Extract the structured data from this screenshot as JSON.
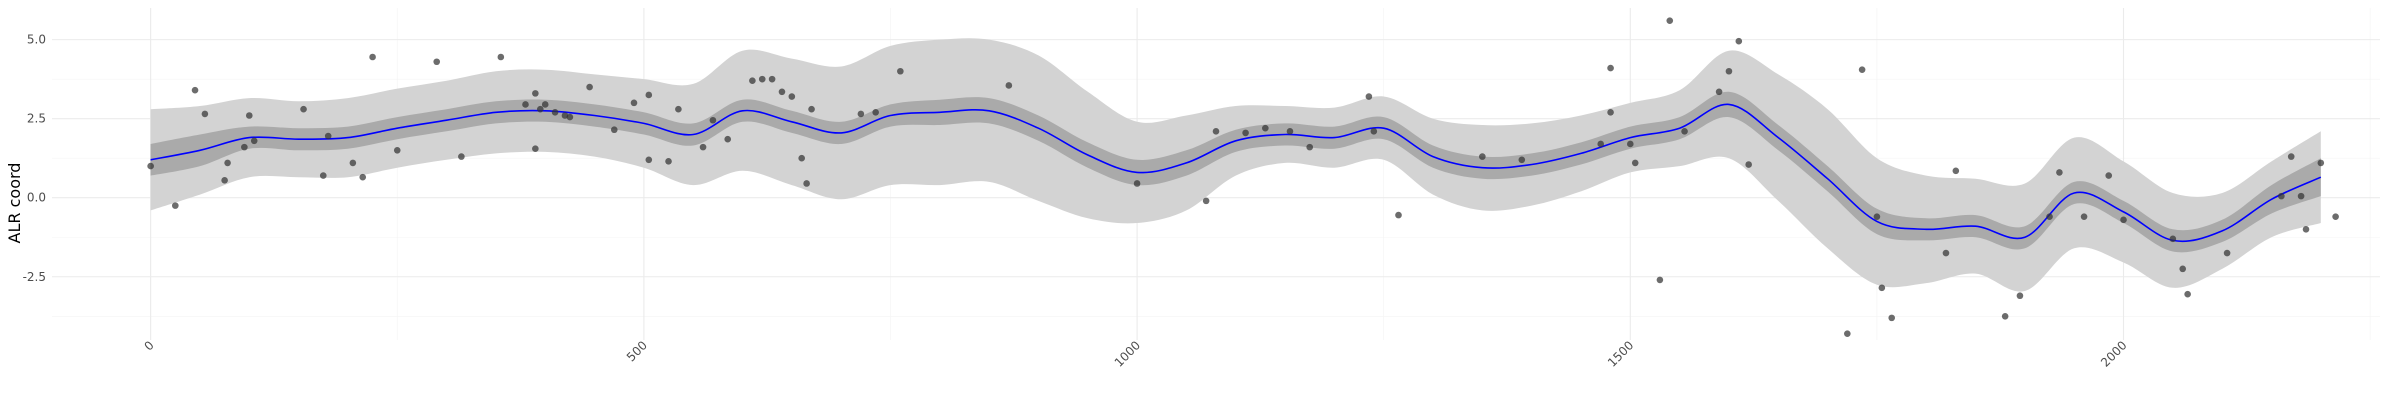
{
  "chart_data": {
    "type": "scatter",
    "title": "",
    "xlabel": "",
    "ylabel": "ALR coord",
    "xlim": [
      -100,
      2260
    ],
    "ylim": [
      -4.5,
      6.0
    ],
    "x_ticks": [
      0,
      500,
      1000,
      1500,
      2000
    ],
    "x_tick_labels": [
      "0",
      "500",
      "1000",
      "1500",
      "2000"
    ],
    "y_ticks": [
      -2.5,
      0.0,
      2.5,
      5.0
    ],
    "y_tick_labels": [
      "-2.5",
      "0.0",
      "2.5",
      "5.0"
    ],
    "grid": true,
    "legend": "none",
    "colors": {
      "fit_line": "#0000ff",
      "inner_band": "#aaaaaa",
      "outer_band": "#d3d3d3",
      "points": "#333333"
    },
    "points": [
      [
        0,
        1.0
      ],
      [
        25,
        -0.25
      ],
      [
        45,
        3.4
      ],
      [
        55,
        2.65
      ],
      [
        75,
        0.55
      ],
      [
        78,
        1.1
      ],
      [
        95,
        1.6
      ],
      [
        105,
        1.8
      ],
      [
        100,
        2.6
      ],
      [
        155,
        2.8
      ],
      [
        175,
        0.7
      ],
      [
        180,
        1.95
      ],
      [
        215,
        0.65
      ],
      [
        205,
        1.1
      ],
      [
        225,
        4.45
      ],
      [
        250,
        1.5
      ],
      [
        290,
        4.3
      ],
      [
        315,
        1.3
      ],
      [
        355,
        4.45
      ],
      [
        380,
        2.95
      ],
      [
        390,
        1.55
      ],
      [
        390,
        3.3
      ],
      [
        395,
        2.8
      ],
      [
        400,
        2.95
      ],
      [
        410,
        2.7
      ],
      [
        420,
        2.6
      ],
      [
        425,
        2.55
      ],
      [
        445,
        3.5
      ],
      [
        470,
        2.15
      ],
      [
        490,
        3.0
      ],
      [
        505,
        1.2
      ],
      [
        505,
        3.25
      ],
      [
        525,
        1.15
      ],
      [
        535,
        2.8
      ],
      [
        560,
        1.6
      ],
      [
        570,
        2.45
      ],
      [
        585,
        1.85
      ],
      [
        610,
        3.7
      ],
      [
        620,
        3.75
      ],
      [
        630,
        3.75
      ],
      [
        640,
        3.35
      ],
      [
        650,
        3.2
      ],
      [
        660,
        1.25
      ],
      [
        665,
        0.45
      ],
      [
        670,
        2.8
      ],
      [
        720,
        2.65
      ],
      [
        735,
        2.7
      ],
      [
        760,
        4.0
      ],
      [
        870,
        3.55
      ],
      [
        1000,
        0.45
      ],
      [
        1070,
        -0.1
      ],
      [
        1080,
        2.1
      ],
      [
        1110,
        2.05
      ],
      [
        1130,
        2.2
      ],
      [
        1155,
        2.1
      ],
      [
        1175,
        1.6
      ],
      [
        1235,
        3.2
      ],
      [
        1240,
        2.1
      ],
      [
        1265,
        -0.55
      ],
      [
        1350,
        1.3
      ],
      [
        1390,
        1.2
      ],
      [
        1470,
        1.7
      ],
      [
        1480,
        4.1
      ],
      [
        1480,
        2.7
      ],
      [
        1500,
        1.7
      ],
      [
        1505,
        1.1
      ],
      [
        1530,
        -2.6
      ],
      [
        1540,
        5.6
      ],
      [
        1555,
        2.1
      ],
      [
        1590,
        3.35
      ],
      [
        1600,
        4.0
      ],
      [
        1610,
        4.95
      ],
      [
        1620,
        1.05
      ],
      [
        1720,
        -4.3
      ],
      [
        1735,
        4.05
      ],
      [
        1750,
        -0.6
      ],
      [
        1755,
        -2.85
      ],
      [
        1765,
        -3.8
      ],
      [
        1820,
        -1.75
      ],
      [
        1830,
        0.85
      ],
      [
        1880,
        -3.75
      ],
      [
        1895,
        -3.1
      ],
      [
        1925,
        -0.6
      ],
      [
        1935,
        0.8
      ],
      [
        1960,
        -0.6
      ],
      [
        1985,
        0.7
      ],
      [
        2000,
        -0.7
      ],
      [
        2050,
        -1.3
      ],
      [
        2060,
        -2.25
      ],
      [
        2065,
        -3.05
      ],
      [
        2105,
        -1.75
      ],
      [
        2160,
        0.05
      ],
      [
        2170,
        1.3
      ],
      [
        2180,
        0.05
      ],
      [
        2185,
        -1.0
      ],
      [
        2200,
        1.1
      ],
      [
        2215,
        -0.6
      ]
    ],
    "series": [
      {
        "kind": "fit",
        "x": [
          0,
          50,
          100,
          150,
          200,
          250,
          300,
          350,
          400,
          450,
          500,
          550,
          600,
          650,
          700,
          750,
          800,
          850,
          900,
          950,
          1000,
          1050,
          1100,
          1150,
          1200,
          1250,
          1300,
          1350,
          1400,
          1450,
          1500,
          1550,
          1600,
          1650,
          1700,
          1750,
          1800,
          1850,
          1900,
          1950,
          2000,
          2050,
          2100,
          2150,
          2200
        ],
        "y": [
          1.2,
          1.5,
          1.9,
          1.85,
          1.9,
          2.2,
          2.45,
          2.7,
          2.75,
          2.6,
          2.35,
          2.0,
          2.75,
          2.4,
          2.05,
          2.6,
          2.7,
          2.75,
          2.2,
          1.35,
          0.8,
          1.1,
          1.8,
          2.0,
          1.9,
          2.2,
          1.3,
          0.95,
          1.05,
          1.4,
          1.9,
          2.2,
          2.95,
          1.9,
          0.6,
          -0.75,
          -1.0,
          -0.9,
          -1.25,
          0.15,
          -0.45,
          -1.35,
          -1.05,
          -0.05,
          0.65
        ],
        "inner_band": [
          0.5,
          0.5,
          0.35,
          0.35,
          0.35,
          0.35,
          0.35,
          0.35,
          0.35,
          0.35,
          0.35,
          0.35,
          0.35,
          0.35,
          0.35,
          0.35,
          0.4,
          0.4,
          0.4,
          0.4,
          0.4,
          0.4,
          0.35,
          0.35,
          0.35,
          0.35,
          0.35,
          0.35,
          0.35,
          0.35,
          0.35,
          0.35,
          0.4,
          0.4,
          0.4,
          0.4,
          0.35,
          0.35,
          0.35,
          0.35,
          0.35,
          0.35,
          0.35,
          0.45,
          0.6
        ],
        "outer_band": [
          1.6,
          1.4,
          1.25,
          1.2,
          1.25,
          1.25,
          1.25,
          1.3,
          1.3,
          1.3,
          1.4,
          1.6,
          1.9,
          2.0,
          2.1,
          2.2,
          2.3,
          2.25,
          2.3,
          2.0,
          1.6,
          1.5,
          1.1,
          0.9,
          0.95,
          1.0,
          1.2,
          1.35,
          1.3,
          1.2,
          1.1,
          1.2,
          1.7,
          2.0,
          2.2,
          2.0,
          1.7,
          1.5,
          1.7,
          1.75,
          1.6,
          1.5,
          1.2,
          1.2,
          1.45
        ]
      }
    ]
  }
}
